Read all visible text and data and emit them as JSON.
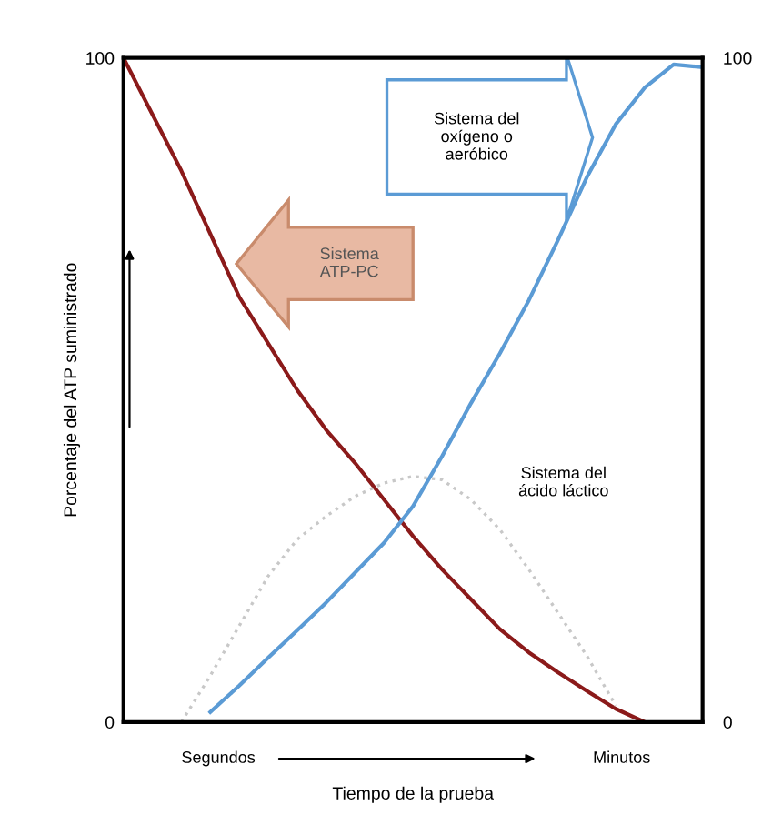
{
  "chart_data": {
    "type": "line",
    "xlabel": "Tiempo de la prueba",
    "ylabel": "Porcentaje del ATP suministrado",
    "categories": [
      null,
      null,
      null,
      null,
      null,
      null,
      null,
      null,
      null,
      null,
      null,
      null,
      null,
      null,
      null,
      null,
      null,
      null,
      null,
      null,
      null
    ],
    "ylim": [
      0,
      100
    ],
    "yticks": [
      0,
      100
    ],
    "y2lim": [
      0,
      100
    ],
    "y2ticks": [
      0,
      100
    ],
    "marker": "none",
    "series": [
      {
        "color": "#8b1a1a",
        "line_style": "solid",
        "values": [
          100,
          91.5,
          83,
          73.5,
          64,
          57,
          50,
          44,
          39,
          33.5,
          28,
          23,
          18.5,
          14,
          10.5,
          7.5,
          4.7,
          2,
          0,
          null,
          null
        ]
      },
      {
        "color": "#5b9bd5",
        "line_style": "solid",
        "values": [
          null,
          null,
          null,
          1.5,
          5.5,
          9.7,
          13.8,
          18,
          22.5,
          27,
          32.5,
          40,
          48,
          55.5,
          63.5,
          72.5,
          82,
          90,
          95.5,
          99,
          98.6
        ]
      },
      {
        "color": "#c8c8c8",
        "line_style": "dotted",
        "values": [
          null,
          null,
          0,
          7,
          14.5,
          22,
          27.5,
          31,
          34,
          36,
          37,
          36.5,
          33.5,
          29,
          23,
          16.5,
          10,
          2.5,
          null,
          null,
          null
        ]
      }
    ],
    "annotations": [
      "Sistema del\noxígeno o\naeróbico",
      "Sistema\nATP-PC",
      "Sistema del\nácido láctico",
      "Segundos",
      "Minutos"
    ]
  }
}
